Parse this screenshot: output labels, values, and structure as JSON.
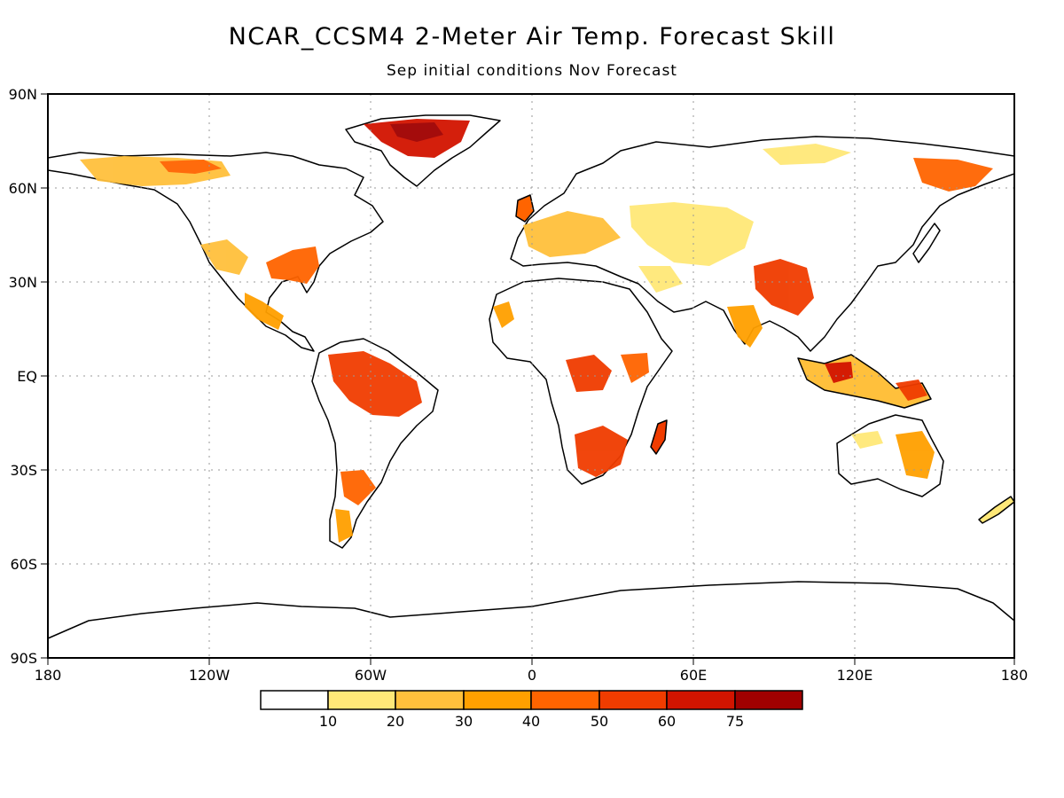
{
  "title": "NCAR_CCSM4 2-Meter Air Temp. Forecast Skill",
  "subtitle": "Sep initial conditions   Nov Forecast",
  "lat_labels": [
    "90N",
    "60N",
    "30N",
    "EQ",
    "30S",
    "60S",
    "90S"
  ],
  "lon_labels": [
    "180",
    "120W",
    "60W",
    "0",
    "60E",
    "120E",
    "180"
  ],
  "colorbar": {
    "labels": [
      "10",
      "20",
      "30",
      "40",
      "50",
      "60",
      "75"
    ],
    "colors": [
      "#ffffff",
      "#ffe878",
      "#ffc03c",
      "#ffa000",
      "#ff6400",
      "#f03c00",
      "#d21400",
      "#a00000"
    ]
  },
  "colors": {
    "land_low": "#ffe878",
    "land_mid": "#ffc03c",
    "land_high": "#ff6400",
    "land_very_high": "#d21400"
  }
}
